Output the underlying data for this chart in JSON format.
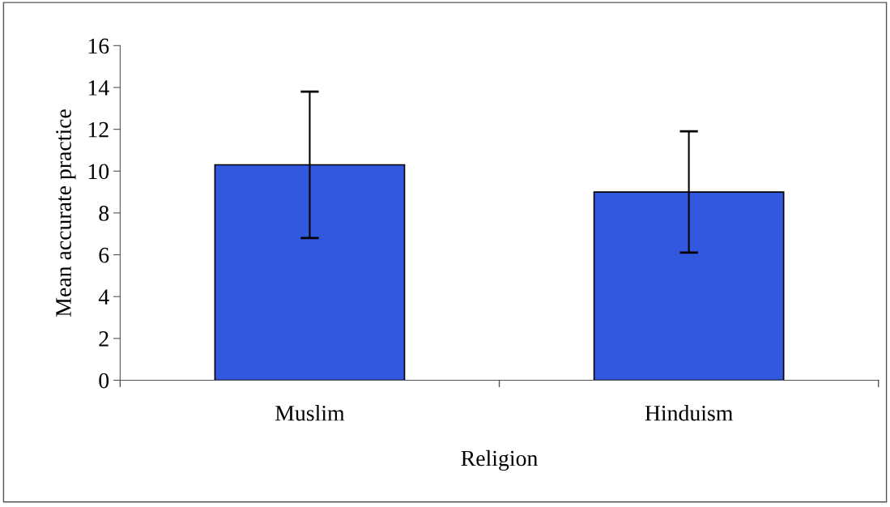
{
  "chart_data": {
    "type": "bar",
    "xlabel": "Religion",
    "ylabel": "Mean accurate practice",
    "categories": [
      "Muslim",
      "Hinduism"
    ],
    "values": [
      10.3,
      9.0
    ],
    "errors": [
      3.5,
      2.9
    ],
    "color": "#3358e0",
    "ylim": [
      0,
      16
    ],
    "yticks": [
      0,
      2,
      4,
      6,
      8,
      10,
      12,
      14,
      16
    ],
    "grid": false
  }
}
